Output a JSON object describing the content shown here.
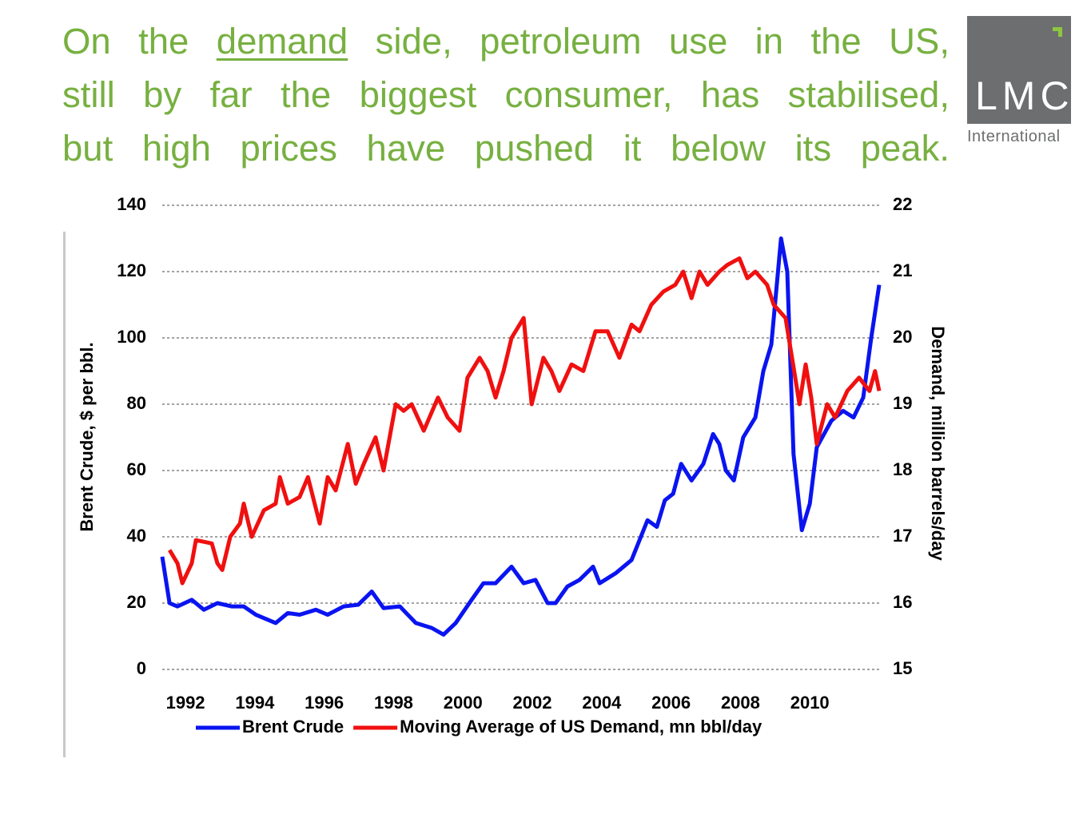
{
  "header": {
    "title": [
      "On the ",
      "demand",
      " side, petroleum use in the US,",
      "still by far the biggest consumer, has stabilised,",
      "but high prices have pushed it below its peak."
    ]
  },
  "logo": {
    "name": "LMC",
    "subtitle": "International"
  },
  "chart_data": {
    "type": "line",
    "y_label": "Brent Crude, $ per bbl.",
    "y2_label": "Demand, million barrels/day",
    "xlim": [
      1991.33,
      2012.0
    ],
    "xticks": [
      1992,
      1994,
      1996,
      1998,
      2000,
      2002,
      2004,
      2006,
      2008,
      2010
    ],
    "ylim": [
      0,
      140
    ],
    "yticks": [
      0,
      20,
      40,
      60,
      80,
      100,
      120,
      140
    ],
    "y2lim": [
      15,
      22
    ],
    "y2ticks": [
      15,
      16,
      17,
      18,
      19,
      20,
      21,
      22
    ],
    "grid": true,
    "legend": "bottom",
    "series": [
      {
        "name": "Brent Crude",
        "color": "#0a14f0",
        "x": [
          1991.33,
          1991.54,
          1991.77,
          1992.18,
          1992.53,
          1992.92,
          1993.34,
          1993.68,
          1994.03,
          1994.6,
          1994.95,
          1995.29,
          1995.76,
          1996.1,
          1996.56,
          1996.98,
          1997.37,
          1997.71,
          1998.18,
          1998.64,
          1999.1,
          1999.44,
          1999.79,
          2000.25,
          2000.59,
          2000.94,
          2001.4,
          2001.75,
          2002.09,
          2002.44,
          2002.67,
          2003.01,
          2003.36,
          2003.75,
          2003.94,
          2004.4,
          2004.86,
          2005.32,
          2005.59,
          2005.82,
          2006.06,
          2006.29,
          2006.59,
          2006.93,
          2007.21,
          2007.39,
          2007.58,
          2007.81,
          2008.08,
          2008.43,
          2008.66,
          2008.89,
          2009.17,
          2009.35,
          2009.53,
          2009.77,
          2010.0,
          2010.2,
          2010.62,
          2010.96,
          2011.26,
          2011.54,
          2011.77,
          2012.0
        ],
        "values": [
          34,
          20,
          19,
          21,
          18,
          20,
          19,
          19,
          16.5,
          14,
          17,
          16.5,
          18,
          16.5,
          19,
          19.5,
          23.5,
          18.5,
          19,
          14,
          12.5,
          10.5,
          14,
          21,
          26,
          26,
          31,
          26,
          27,
          20,
          20,
          25,
          27,
          31,
          26,
          29,
          33,
          45,
          43,
          51,
          53,
          62,
          57,
          62,
          71,
          68,
          60,
          57,
          70,
          76,
          90,
          98,
          130,
          120,
          65,
          42,
          50,
          67,
          75,
          78,
          76,
          82,
          100,
          116
        ]
      },
      {
        "name": "Moving Average of US Demand, mn bbl/day",
        "color": "#f01010",
        "axis": "y2",
        "x": [
          1991.54,
          1991.77,
          1991.91,
          1992.18,
          1992.3,
          1992.76,
          1992.92,
          1993.06,
          1993.29,
          1993.57,
          1993.68,
          1993.91,
          1994.26,
          1994.6,
          1994.72,
          1994.95,
          1995.29,
          1995.53,
          1995.87,
          1996.1,
          1996.33,
          1996.68,
          1996.91,
          1997.14,
          1997.48,
          1997.71,
          1998.06,
          1998.29,
          1998.52,
          1998.87,
          1999.28,
          1999.56,
          1999.9,
          2000.13,
          2000.48,
          2000.71,
          2000.94,
          2001.17,
          2001.4,
          2001.75,
          2001.98,
          2002.32,
          2002.55,
          2002.78,
          2003.13,
          2003.47,
          2003.82,
          2004.17,
          2004.51,
          2004.86,
          2005.09,
          2005.43,
          2005.78,
          2006.12,
          2006.35,
          2006.59,
          2006.82,
          2007.05,
          2007.39,
          2007.62,
          2007.97,
          2008.2,
          2008.43,
          2008.77,
          2008.96,
          2009.3,
          2009.58,
          2009.7,
          2009.88,
          2010.04,
          2010.2,
          2010.5,
          2010.73,
          2011.08,
          2011.42,
          2011.72,
          2011.88,
          2012.0
        ],
        "values": [
          16.8,
          16.6,
          16.3,
          16.6,
          16.95,
          16.9,
          16.6,
          16.5,
          17.0,
          17.2,
          17.5,
          17.0,
          17.4,
          17.5,
          17.9,
          17.5,
          17.6,
          17.9,
          17.2,
          17.9,
          17.7,
          18.4,
          17.8,
          18.1,
          18.5,
          18.0,
          19.0,
          18.9,
          19.0,
          18.6,
          19.1,
          18.8,
          18.6,
          19.4,
          19.7,
          19.5,
          19.1,
          19.5,
          20.0,
          20.3,
          19.0,
          19.7,
          19.5,
          19.2,
          19.6,
          19.5,
          20.1,
          20.1,
          19.7,
          20.2,
          20.1,
          20.5,
          20.7,
          20.8,
          21.0,
          20.6,
          21.0,
          20.8,
          21.0,
          21.1,
          21.2,
          20.9,
          21.0,
          20.8,
          20.5,
          20.3,
          19.4,
          19.0,
          19.6,
          19.1,
          18.4,
          19.0,
          18.8,
          19.2,
          19.4,
          19.2,
          19.5,
          19.2
        ]
      }
    ]
  }
}
